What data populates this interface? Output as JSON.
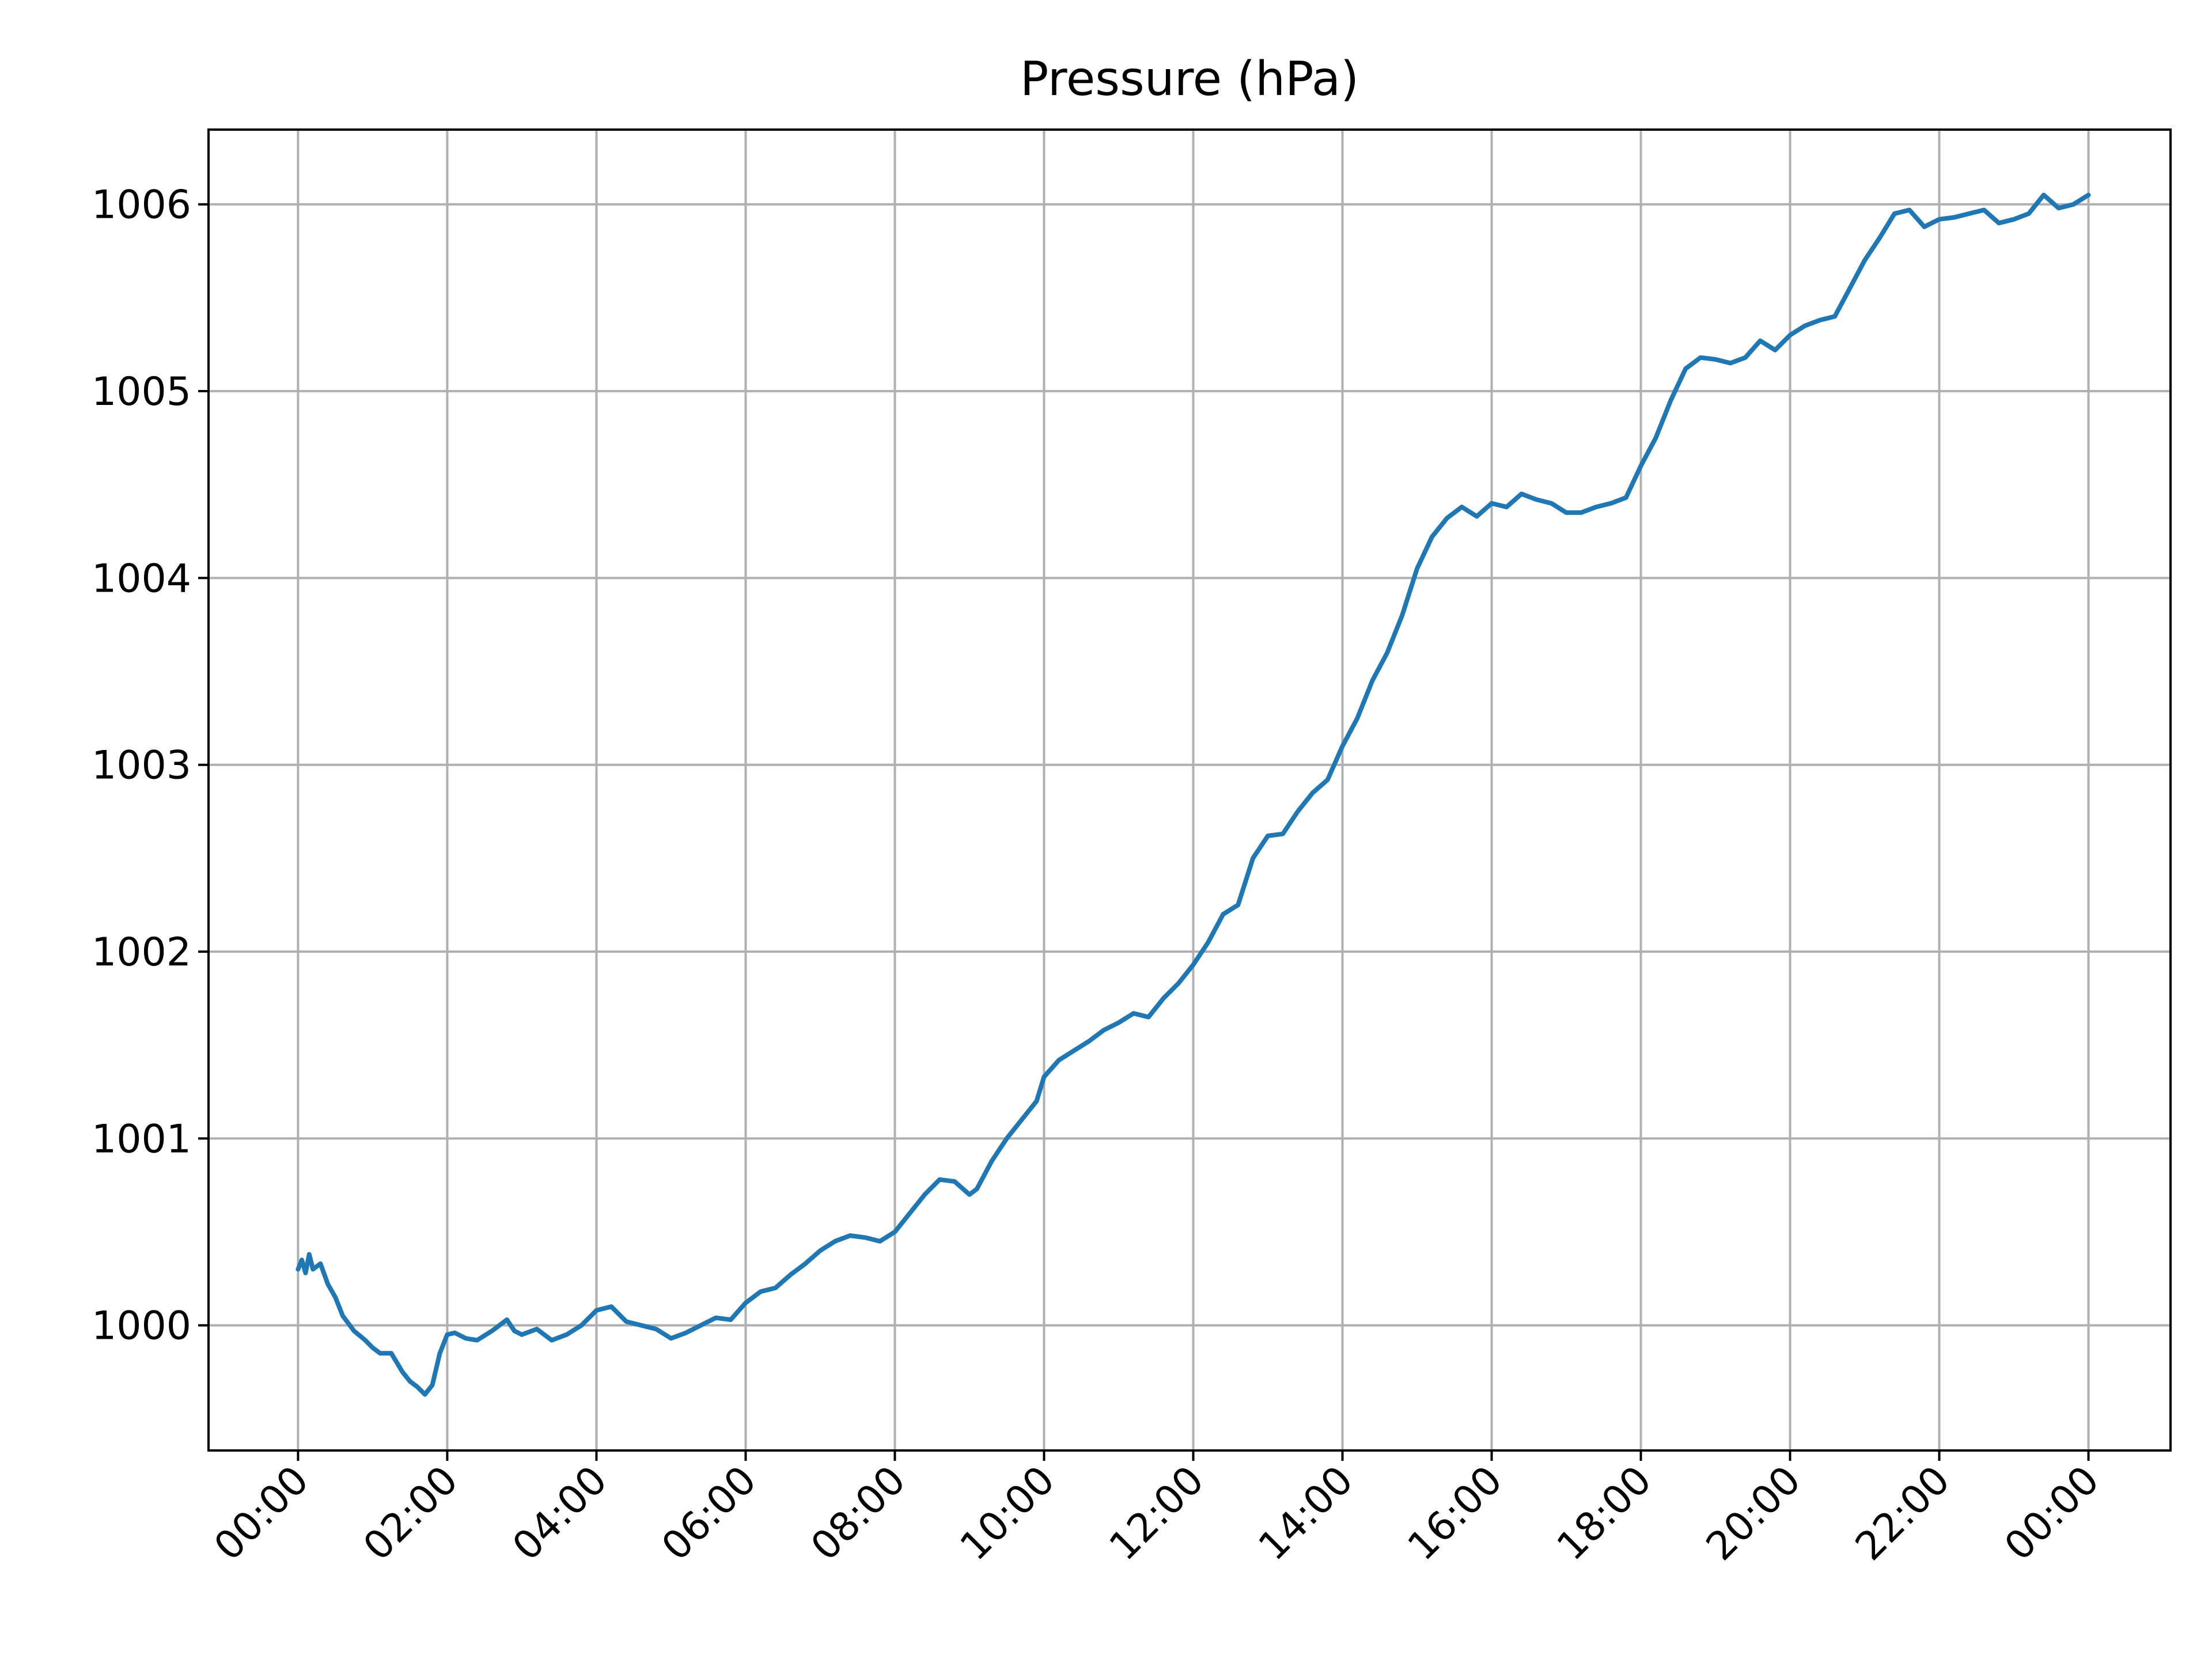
{
  "chart_data": {
    "type": "line",
    "title": "Pressure (hPa)",
    "xlabel": "",
    "ylabel": "",
    "x_unit": "hours",
    "xlim": [
      -1.2,
      25.1
    ],
    "ylim": [
      999.33,
      1006.4
    ],
    "grid": true,
    "line_color": "#1f77b4",
    "grid_color": "#b0b0b0",
    "y_ticks": [
      {
        "value": 1000,
        "label": "1000"
      },
      {
        "value": 1001,
        "label": "1001"
      },
      {
        "value": 1002,
        "label": "1002"
      },
      {
        "value": 1003,
        "label": "1003"
      },
      {
        "value": 1004,
        "label": "1004"
      },
      {
        "value": 1005,
        "label": "1005"
      },
      {
        "value": 1006,
        "label": "1006"
      }
    ],
    "x_ticks": [
      {
        "value": 0,
        "label": "00:00"
      },
      {
        "value": 2,
        "label": "02:00"
      },
      {
        "value": 4,
        "label": "04:00"
      },
      {
        "value": 6,
        "label": "06:00"
      },
      {
        "value": 8,
        "label": "08:00"
      },
      {
        "value": 10,
        "label": "10:00"
      },
      {
        "value": 12,
        "label": "12:00"
      },
      {
        "value": 14,
        "label": "14:00"
      },
      {
        "value": 16,
        "label": "16:00"
      },
      {
        "value": 18,
        "label": "18:00"
      },
      {
        "value": 20,
        "label": "20:00"
      },
      {
        "value": 22,
        "label": "22:00"
      },
      {
        "value": 24,
        "label": "00:00"
      }
    ],
    "series": [
      {
        "x": [
          0.0,
          0.05,
          0.1,
          0.15,
          0.2,
          0.3,
          0.4,
          0.5,
          0.6,
          0.75,
          0.9,
          1.0,
          1.1,
          1.25,
          1.4,
          1.5,
          1.6,
          1.7,
          1.8,
          1.9,
          2.0,
          2.1,
          2.25,
          2.4,
          2.6,
          2.8,
          2.9,
          3.0,
          3.2,
          3.4,
          3.6,
          3.8,
          4.0,
          4.2,
          4.4,
          4.6,
          4.8,
          5.0,
          5.2,
          5.4,
          5.6,
          5.8,
          6.0,
          6.2,
          6.4,
          6.6,
          6.8,
          7.0,
          7.2,
          7.4,
          7.6,
          7.8,
          8.0,
          8.2,
          8.4,
          8.6,
          8.8,
          9.0,
          9.1,
          9.3,
          9.5,
          9.7,
          9.9,
          10.0,
          10.2,
          10.4,
          10.6,
          10.8,
          11.0,
          11.2,
          11.4,
          11.6,
          11.8,
          12.0,
          12.2,
          12.4,
          12.6,
          12.8,
          13.0,
          13.2,
          13.4,
          13.6,
          13.8,
          14.0,
          14.2,
          14.4,
          14.6,
          14.8,
          15.0,
          15.2,
          15.4,
          15.6,
          15.8,
          16.0,
          16.2,
          16.4,
          16.6,
          16.8,
          17.0,
          17.2,
          17.4,
          17.6,
          17.8,
          18.0,
          18.2,
          18.4,
          18.6,
          18.8,
          19.0,
          19.2,
          19.4,
          19.6,
          19.8,
          20.0,
          20.2,
          20.4,
          20.6,
          20.8,
          21.0,
          21.2,
          21.4,
          21.6,
          21.8,
          22.0,
          22.2,
          22.4,
          22.6,
          22.8,
          23.0,
          23.2,
          23.4,
          23.6,
          23.8,
          24.0
        ],
        "y": [
          1000.3,
          1000.35,
          1000.28,
          1000.38,
          1000.3,
          1000.33,
          1000.22,
          1000.15,
          1000.05,
          999.97,
          999.92,
          999.88,
          999.85,
          999.85,
          999.75,
          999.7,
          999.67,
          999.63,
          999.68,
          999.85,
          999.95,
          999.96,
          999.93,
          999.92,
          999.97,
          1000.03,
          999.97,
          999.95,
          999.98,
          999.92,
          999.95,
          1000.0,
          1000.08,
          1000.1,
          1000.02,
          1000.0,
          999.98,
          999.93,
          999.96,
          1000.0,
          1000.04,
          1000.03,
          1000.12,
          1000.18,
          1000.2,
          1000.27,
          1000.33,
          1000.4,
          1000.45,
          1000.48,
          1000.47,
          1000.45,
          1000.5,
          1000.6,
          1000.7,
          1000.78,
          1000.77,
          1000.7,
          1000.73,
          1000.88,
          1001.0,
          1001.1,
          1001.2,
          1001.33,
          1001.42,
          1001.47,
          1001.52,
          1001.58,
          1001.62,
          1001.67,
          1001.65,
          1001.75,
          1001.83,
          1001.93,
          1002.05,
          1002.2,
          1002.25,
          1002.5,
          1002.62,
          1002.63,
          1002.75,
          1002.85,
          1002.92,
          1003.1,
          1003.25,
          1003.45,
          1003.6,
          1003.8,
          1004.05,
          1004.22,
          1004.32,
          1004.38,
          1004.33,
          1004.4,
          1004.38,
          1004.45,
          1004.42,
          1004.4,
          1004.35,
          1004.35,
          1004.38,
          1004.4,
          1004.43,
          1004.6,
          1004.75,
          1004.95,
          1005.12,
          1005.18,
          1005.17,
          1005.15,
          1005.18,
          1005.27,
          1005.22,
          1005.3,
          1005.35,
          1005.38,
          1005.4,
          1005.55,
          1005.7,
          1005.82,
          1005.95,
          1005.97,
          1005.88,
          1005.92,
          1005.93,
          1005.95,
          1005.97,
          1005.9,
          1005.92,
          1005.95,
          1006.05,
          1005.98,
          1006.0,
          1006.05
        ]
      }
    ]
  }
}
